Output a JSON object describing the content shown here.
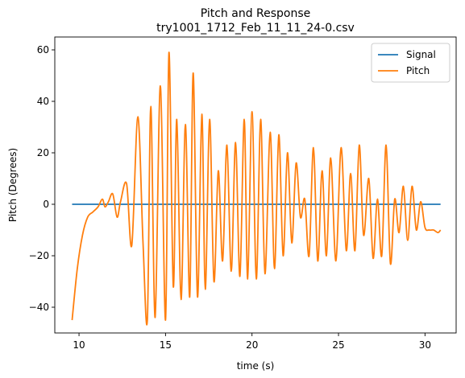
{
  "chart_data": {
    "type": "line",
    "title": "Pitch and Response",
    "subtitle": "try1001_1712_Feb_11_11_24-0.csv",
    "xlabel": "time (s)",
    "ylabel": "Pitch (Degrees)",
    "xlim": [
      8.6,
      31.8
    ],
    "ylim": [
      -50,
      65
    ],
    "x_ticks": [
      10,
      15,
      20,
      25,
      30
    ],
    "y_ticks": [
      -40,
      -20,
      0,
      20,
      40,
      60
    ],
    "grid": false,
    "legend_position": "top-right",
    "series": [
      {
        "name": "Signal",
        "color": "#1f77b4",
        "x": [
          9.6,
          30.9
        ],
        "y": [
          0,
          0
        ]
      },
      {
        "name": "Pitch",
        "color": "#ff7f0e",
        "x": [
          9.6,
          9.9,
          10.2,
          10.5,
          10.8,
          11.1,
          11.35,
          11.5,
          11.7,
          11.95,
          12.2,
          12.4,
          12.75,
          13.05,
          13.4,
          13.7,
          13.95,
          14.15,
          14.4,
          14.7,
          15.0,
          15.2,
          15.45,
          15.65,
          15.9,
          16.15,
          16.4,
          16.6,
          16.85,
          17.1,
          17.3,
          17.55,
          17.8,
          18.05,
          18.3,
          18.55,
          18.8,
          19.05,
          19.3,
          19.55,
          19.75,
          20.0,
          20.25,
          20.5,
          20.75,
          21.05,
          21.3,
          21.55,
          21.8,
          22.05,
          22.3,
          22.55,
          22.8,
          23.05,
          23.3,
          23.55,
          23.8,
          24.05,
          24.3,
          24.55,
          24.85,
          25.15,
          25.45,
          25.7,
          25.95,
          26.2,
          26.45,
          26.75,
          27.0,
          27.25,
          27.5,
          27.75,
          28.0,
          28.25,
          28.5,
          28.75,
          29.0,
          29.25,
          29.5,
          29.75,
          30.0,
          30.25,
          30.5,
          30.75,
          30.9
        ],
        "y": [
          -45,
          -25,
          -12,
          -5,
          -3,
          -1,
          2,
          -1,
          1,
          4,
          -5,
          1,
          8,
          -16,
          34,
          -15,
          -45,
          38,
          -44,
          46,
          -45,
          59,
          -32,
          33,
          -37,
          31,
          -36,
          51,
          -36,
          35,
          -33,
          33,
          -30,
          13,
          -22,
          23,
          -26,
          24,
          -28,
          33,
          -29,
          36,
          -29,
          33,
          -27,
          28,
          -25,
          27,
          -20,
          20,
          -15,
          16,
          -5,
          2,
          -20,
          22,
          -22,
          13,
          -20,
          18,
          -22,
          22,
          -18,
          12,
          -18,
          23,
          -12,
          10,
          -21,
          2,
          -20,
          23,
          -23,
          2,
          -11,
          7,
          -14,
          7,
          -10,
          1,
          -9,
          -10,
          -10,
          -11,
          -10
        ]
      }
    ]
  }
}
